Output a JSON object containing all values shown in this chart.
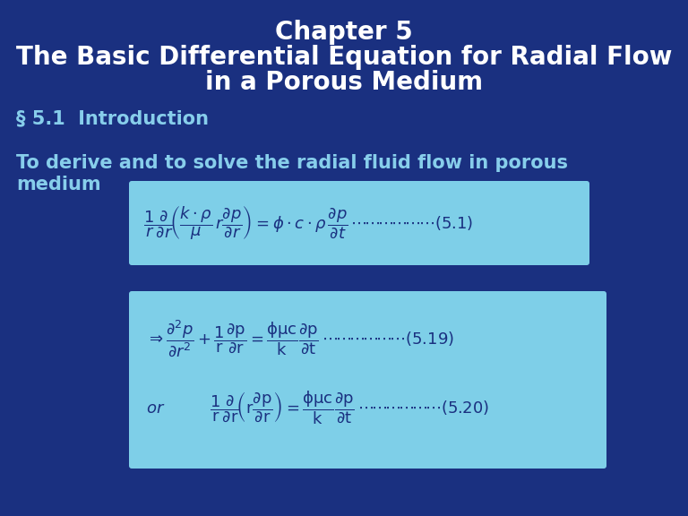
{
  "background_color": "#1a3080",
  "title_line1": "Chapter 5",
  "title_line2": "The Basic Differential Equation for Radial Flow",
  "title_line3": "in a Porous Medium",
  "title_color": "#ffffff",
  "title_fontsize": 20,
  "section_text": "§ 5.1  Introduction",
  "section_color": "#87ceeb",
  "section_fontsize": 15,
  "intro_color": "#87ceeb",
  "intro_fontsize": 15,
  "box1_color": "#7ecfe8",
  "box2_color": "#7ecfe8",
  "eq_color": "#1a3080",
  "eq_fontsize": 13
}
